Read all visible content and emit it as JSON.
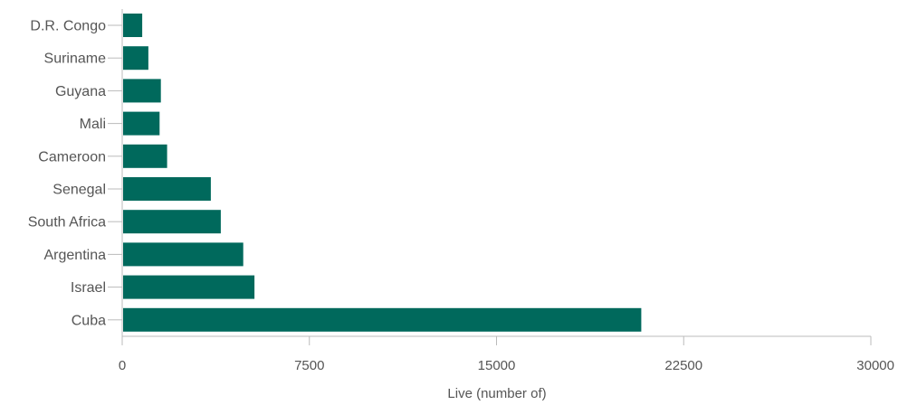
{
  "chart_data": {
    "type": "bar",
    "orientation": "horizontal",
    "categories": [
      "D.R. Congo",
      "Suriname",
      "Guyana",
      "Mali",
      "Cameroon",
      "Senegal",
      "South Africa",
      "Argentina",
      "Israel",
      "Cuba"
    ],
    "values": [
      800,
      1050,
      1550,
      1500,
      1800,
      3550,
      3950,
      4850,
      5300,
      20800
    ],
    "xlabel": "Live (number of)",
    "ylabel": "",
    "xlim": [
      0,
      30000
    ],
    "xticks": [
      "0",
      "7500",
      "15000",
      "22500",
      "30000"
    ],
    "grid": false,
    "colors": {
      "bar": "#00695c",
      "axis": "#bbbbbb",
      "text": "#555555"
    }
  }
}
